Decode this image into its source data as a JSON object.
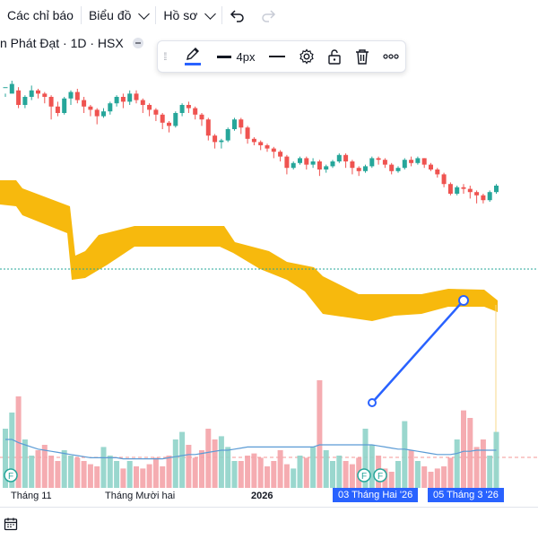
{
  "toolbar": {
    "indicators_label": "Các chỉ báo",
    "chart_type_label": "Biểu đồ",
    "profile_label": "Hồ sơ",
    "undo_icon": "undo-icon",
    "redo_icon": "redo-icon"
  },
  "legend": {
    "symbol_text": "n Phát Đạt · 1D · HSX"
  },
  "drawing_toolbar": {
    "width_label": "4px",
    "accent_color": "#2962ff"
  },
  "x_axis": {
    "labels": [
      "Tháng 11",
      "Tháng Mười hai",
      "2026"
    ],
    "highlight_labels": [
      "03 Tháng Hai '26",
      "05 Tháng 3 '26"
    ]
  },
  "event_markers": [
    "F",
    "F",
    "F"
  ],
  "colors": {
    "up": "#26a69a",
    "down": "#ef5350",
    "cloud": "#f7b500",
    "line": "#2962ff",
    "ma": "#5b9bd5"
  },
  "chart_data": {
    "type": "candlestick",
    "candles": [
      [
        96,
        96,
        92,
        90
      ],
      [
        92,
        98,
        100,
        94
      ],
      [
        94,
        85,
        96,
        83
      ],
      [
        85,
        90,
        91,
        83
      ],
      [
        90,
        94,
        97,
        88
      ],
      [
        94,
        92,
        95,
        89
      ],
      [
        92,
        90,
        93,
        86
      ],
      [
        90,
        84,
        91,
        76
      ],
      [
        84,
        80,
        87,
        78
      ],
      [
        80,
        89,
        90,
        79
      ],
      [
        89,
        93,
        94,
        85
      ],
      [
        93,
        88,
        95,
        86
      ],
      [
        88,
        84,
        90,
        80
      ],
      [
        84,
        82,
        85,
        78
      ],
      [
        82,
        78,
        83,
        73
      ],
      [
        78,
        81,
        83,
        77
      ],
      [
        81,
        86,
        87,
        79
      ],
      [
        86,
        90,
        91,
        84
      ],
      [
        90,
        87,
        92,
        83
      ],
      [
        87,
        92,
        94,
        85
      ],
      [
        92,
        88,
        94,
        86
      ],
      [
        88,
        85,
        89,
        80
      ],
      [
        85,
        82,
        86,
        78
      ],
      [
        82,
        79,
        83,
        75
      ],
      [
        79,
        74,
        80,
        70
      ],
      [
        74,
        72,
        75,
        68
      ],
      [
        72,
        80,
        81,
        71
      ],
      [
        80,
        85,
        86,
        78
      ],
      [
        85,
        83,
        87,
        80
      ],
      [
        83,
        79,
        84,
        76
      ],
      [
        79,
        76,
        80,
        72
      ],
      [
        76,
        66,
        77,
        63
      ],
      [
        66,
        62,
        67,
        58
      ],
      [
        62,
        63,
        64,
        58
      ],
      [
        63,
        70,
        71,
        62
      ],
      [
        70,
        76,
        77,
        69
      ],
      [
        76,
        71,
        77,
        67
      ],
      [
        71,
        64,
        72,
        61
      ],
      [
        64,
        62,
        65,
        60
      ],
      [
        62,
        60,
        63,
        57
      ],
      [
        60,
        58,
        61,
        56
      ],
      [
        58,
        56,
        59,
        52
      ],
      [
        56,
        53,
        57,
        50
      ],
      [
        53,
        46,
        54,
        42
      ],
      [
        46,
        49,
        50,
        45
      ],
      [
        49,
        52,
        53,
        48
      ],
      [
        52,
        48,
        53,
        45
      ],
      [
        48,
        50,
        52,
        46
      ],
      [
        50,
        45,
        51,
        41
      ],
      [
        45,
        47,
        48,
        43
      ],
      [
        47,
        50,
        51,
        46
      ],
      [
        50,
        54,
        55,
        49
      ],
      [
        54,
        50,
        55,
        46
      ],
      [
        50,
        46,
        51,
        42
      ],
      [
        46,
        44,
        47,
        41
      ],
      [
        44,
        47,
        48,
        43
      ],
      [
        47,
        52,
        53,
        46
      ],
      [
        52,
        51,
        53,
        48
      ],
      [
        51,
        48,
        52,
        46
      ],
      [
        48,
        44,
        49,
        42
      ],
      [
        44,
        46,
        47,
        43
      ],
      [
        46,
        51,
        52,
        45
      ],
      [
        51,
        49,
        53,
        47
      ],
      [
        49,
        52,
        53,
        48
      ],
      [
        52,
        48,
        52,
        46
      ],
      [
        48,
        45,
        49,
        44
      ],
      [
        45,
        42,
        46,
        40
      ],
      [
        42,
        36,
        43,
        34
      ],
      [
        36,
        30,
        37,
        29
      ],
      [
        30,
        34,
        35,
        29
      ],
      [
        34,
        33,
        36,
        30
      ],
      [
        33,
        31,
        35,
        27
      ],
      [
        31,
        29,
        32,
        24
      ],
      [
        29,
        26,
        30,
        24
      ],
      [
        26,
        31,
        32,
        25
      ],
      [
        31,
        35,
        36,
        30
      ]
    ],
    "volume": [
      0.55,
      0.7,
      0.85,
      0.45,
      0.3,
      0.35,
      0.4,
      0.3,
      0.25,
      0.35,
      0.3,
      0.28,
      0.25,
      0.22,
      0.2,
      0.38,
      0.3,
      0.25,
      0.18,
      0.25,
      0.2,
      0.18,
      0.22,
      0.28,
      0.2,
      0.3,
      0.45,
      0.52,
      0.4,
      0.28,
      0.35,
      0.55,
      0.45,
      0.48,
      0.38,
      0.25,
      0.25,
      0.3,
      0.32,
      0.28,
      0.2,
      0.25,
      0.35,
      0.22,
      0.18,
      0.3,
      0.28,
      0.38,
      1.0,
      0.35,
      0.25,
      0.3,
      0.25,
      0.22,
      0.28,
      0.55,
      0.4,
      0.3,
      0.18,
      0.15,
      0.25,
      0.62,
      0.35,
      0.25,
      0.2,
      0.15,
      0.18,
      0.2,
      0.28,
      0.45,
      0.72,
      0.65,
      0.38,
      0.45,
      0.3,
      0.52
    ],
    "ma": [
      0.45,
      0.45,
      0.42,
      0.4,
      0.38,
      0.36,
      0.35,
      0.34,
      0.33,
      0.32,
      0.31,
      0.3,
      0.29,
      0.28,
      0.28,
      0.28,
      0.28,
      0.28,
      0.27,
      0.27,
      0.27,
      0.27,
      0.27,
      0.27,
      0.27,
      0.28,
      0.29,
      0.3,
      0.31,
      0.31,
      0.32,
      0.33,
      0.34,
      0.35,
      0.35,
      0.36,
      0.37,
      0.38,
      0.38,
      0.38,
      0.38,
      0.38,
      0.38,
      0.38,
      0.38,
      0.38,
      0.38,
      0.38,
      0.4,
      0.4,
      0.4,
      0.4,
      0.4,
      0.4,
      0.4,
      0.4,
      0.4,
      0.39,
      0.38,
      0.37,
      0.36,
      0.36,
      0.35,
      0.34,
      0.33,
      0.32,
      0.31,
      0.31,
      0.31,
      0.32,
      0.34,
      0.34,
      0.35,
      0.35,
      0.35,
      0.35
    ]
  }
}
